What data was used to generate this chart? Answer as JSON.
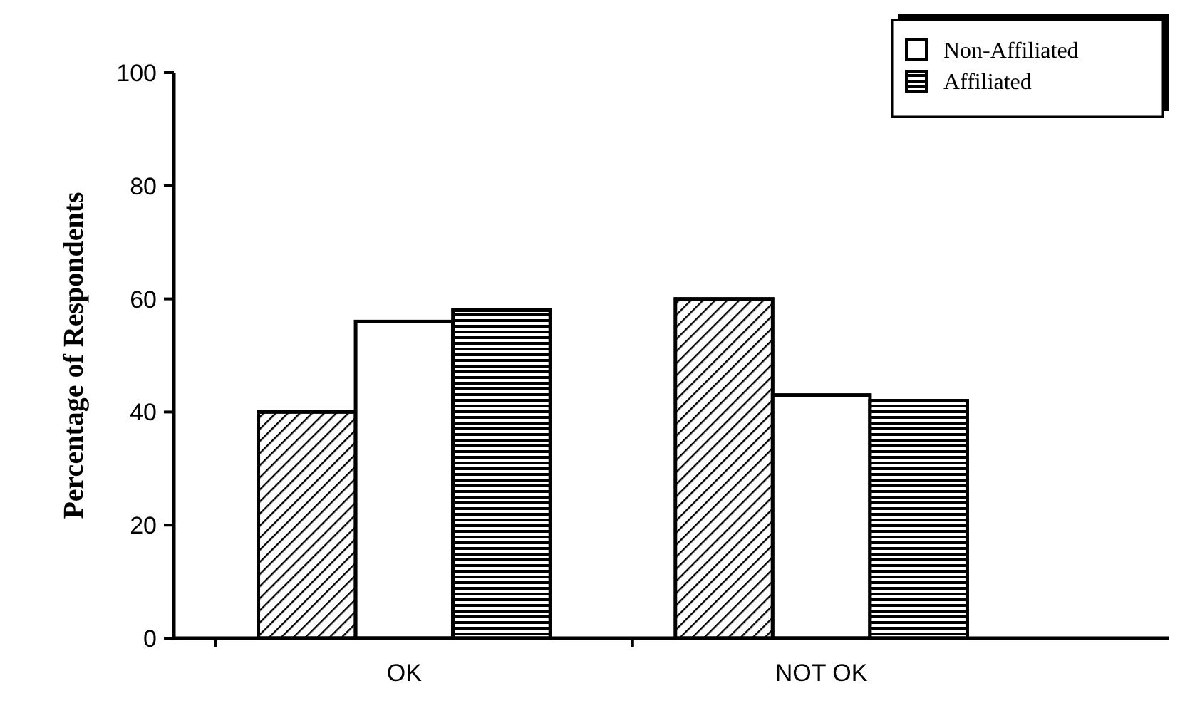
{
  "chart_data": {
    "type": "bar",
    "ylabel": "Percentage of Respondents",
    "categories": [
      "OK",
      "NOT OK"
    ],
    "series": [
      {
        "color": "#000000",
        "values": [
          40,
          60
        ]
      },
      {
        "name": "Non-Affiliated",
        "color": "#ffffff",
        "values": [
          56,
          43
        ]
      },
      {
        "name": "Affiliated",
        "color": "#000000",
        "values": [
          58,
          42
        ]
      }
    ],
    "ylim": [
      0,
      100
    ],
    "yticks": [
      0,
      20,
      40,
      60,
      80,
      100
    ],
    "legend": "top right",
    "grid": false
  }
}
